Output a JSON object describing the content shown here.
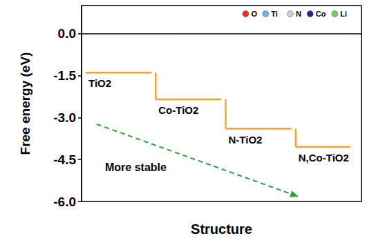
{
  "chart_data": {
    "type": "step",
    "y_label": "Free energy (eV)",
    "x_label": "Structure",
    "categories": [
      "TiO2",
      "Co-TiO2",
      "N-TiO2",
      "N,Co-TiO2"
    ],
    "values": [
      -1.4,
      -2.35,
      -3.4,
      -4.05
    ],
    "color": "#f5a030",
    "ylim": [
      -6,
      1
    ],
    "yticks": [
      {
        "value": 0,
        "label": "0.0"
      },
      -1.5,
      {
        "value": -3,
        "label": "-3.0"
      },
      -4.5,
      {
        "value": -6,
        "label": "-6.0"
      }
    ],
    "grid": false,
    "tick_labels": "y",
    "annotations": [
      {
        "text": "More stable",
        "color": "#2e9e3a",
        "line_style": "dashed"
      }
    ],
    "atoms": [
      {
        "name": "O",
        "color": "#e8312a"
      },
      {
        "name": "Ti",
        "color": "#6fb3e0"
      },
      {
        "name": "N",
        "color": "#c9c9e8"
      },
      {
        "name": "Co",
        "color": "#1f2a8c"
      },
      {
        "name": "Li",
        "color": "#7cc46a"
      }
    ]
  }
}
